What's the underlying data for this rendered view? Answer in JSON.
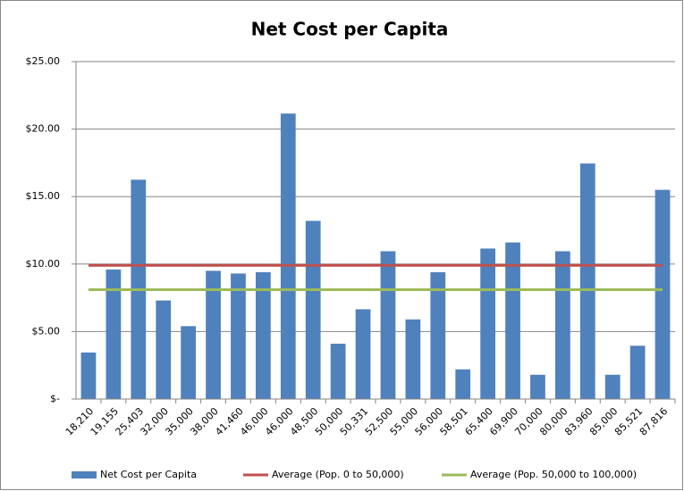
{
  "chart_data": {
    "type": "bar",
    "title": "Net Cost per Capita",
    "categories": [
      "18,210",
      "19,155",
      "25,403",
      "32,000",
      "35,000",
      "38,000",
      "41,460",
      "46,000",
      "46,000",
      "48,500",
      "50,000",
      "50,331",
      "52,500",
      "55,000",
      "56,000",
      "58,501",
      "65,400",
      "69,900",
      "70,000",
      "80,000",
      "83,960",
      "85,000",
      "85,521",
      "87,816"
    ],
    "series": [
      {
        "name": "Net Cost per Capita",
        "type": "bar",
        "color": "#4f81bd",
        "values": [
          3.45,
          9.6,
          16.25,
          7.3,
          5.4,
          9.5,
          9.3,
          9.4,
          21.15,
          13.2,
          4.1,
          6.65,
          10.95,
          5.9,
          9.4,
          2.2,
          11.15,
          11.6,
          1.8,
          10.95,
          17.45,
          1.8,
          3.95,
          15.5
        ]
      },
      {
        "name": "Average (Pop. 0 to 50,000)",
        "type": "line",
        "color": "#c0504d",
        "values": [
          9.9,
          9.9,
          9.9,
          9.9,
          9.9,
          9.9,
          9.9,
          9.9,
          9.9,
          9.9,
          9.9,
          9.9,
          9.9,
          9.9,
          9.9,
          9.9,
          9.9,
          9.9,
          9.9,
          9.9,
          9.9,
          9.9,
          9.9,
          9.9
        ]
      },
      {
        "name": "Average (Pop. 50,000 to 100,000)",
        "type": "line",
        "color": "#9bbb59",
        "values": [
          8.1,
          8.1,
          8.1,
          8.1,
          8.1,
          8.1,
          8.1,
          8.1,
          8.1,
          8.1,
          8.1,
          8.1,
          8.1,
          8.1,
          8.1,
          8.1,
          8.1,
          8.1,
          8.1,
          8.1,
          8.1,
          8.1,
          8.1,
          8.1
        ]
      }
    ],
    "ylim": [
      0,
      25
    ],
    "yticks": [
      {
        "value": 0,
        "label": "$-"
      },
      {
        "value": 5,
        "label": "$5.00"
      },
      {
        "value": 10,
        "label": "$10.00"
      },
      {
        "value": 15,
        "label": "$15.00"
      },
      {
        "value": 20,
        "label": "$20.00"
      },
      {
        "value": 25,
        "label": "$25.00"
      }
    ],
    "grid": true,
    "legend": "bottom"
  }
}
